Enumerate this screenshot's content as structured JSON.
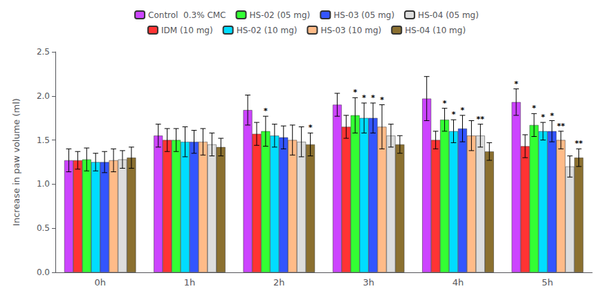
{
  "chart_data": {
    "type": "bar",
    "categories": [
      "0h",
      "1h",
      "2h",
      "3h",
      "4h",
      "5h"
    ],
    "series": [
      {
        "name": "Control  0.3% CMC",
        "color": "#CC44FF",
        "values": [
          1.27,
          1.55,
          1.84,
          1.9,
          1.97,
          1.93
        ],
        "errors": [
          0.13,
          0.13,
          0.17,
          0.13,
          0.25,
          0.15
        ]
      },
      {
        "name": "IDM (10 mg)",
        "color": "#FF3333",
        "values": [
          1.27,
          1.5,
          1.57,
          1.65,
          1.5,
          1.43
        ],
        "errors": [
          0.1,
          0.13,
          0.13,
          0.13,
          0.1,
          0.13
        ]
      },
      {
        "name": "HS-02 (05 mg)",
        "color": "#33FF33",
        "values": [
          1.28,
          1.5,
          1.6,
          1.78,
          1.73,
          1.67
        ],
        "errors": [
          0.13,
          0.13,
          0.17,
          0.2,
          0.13,
          0.13
        ]
      },
      {
        "name": "HS-02 (10 mg)",
        "color": "#00DDFF",
        "values": [
          1.25,
          1.48,
          1.55,
          1.75,
          1.6,
          1.6
        ],
        "errors": [
          0.1,
          0.17,
          0.13,
          0.17,
          0.13,
          0.1
        ]
      },
      {
        "name": "HS-03 (05 mg)",
        "color": "#3355FF",
        "values": [
          1.25,
          1.48,
          1.53,
          1.75,
          1.63,
          1.6
        ],
        "errors": [
          0.12,
          0.13,
          0.13,
          0.17,
          0.15,
          0.12
        ]
      },
      {
        "name": "HS-03 (10 mg)",
        "color": "#FFBB88",
        "values": [
          1.27,
          1.48,
          1.5,
          1.65,
          1.55,
          1.5
        ],
        "errors": [
          0.13,
          0.15,
          0.17,
          0.25,
          0.17,
          0.1
        ]
      },
      {
        "name": "HS-04 (05 mg)",
        "color": "#DDDDDD",
        "values": [
          1.28,
          1.45,
          1.48,
          1.55,
          1.55,
          1.2
        ],
        "errors": [
          0.1,
          0.13,
          0.17,
          0.13,
          0.13,
          0.12
        ]
      },
      {
        "name": "HS-04 (10 mg)",
        "color": "#8B7030",
        "values": [
          1.3,
          1.42,
          1.45,
          1.45,
          1.37,
          1.3
        ],
        "errors": [
          0.12,
          0.1,
          0.13,
          0.1,
          0.1,
          0.1
        ]
      }
    ],
    "annotations": [
      {
        "category": "2h",
        "series": "HS-02 (05 mg)",
        "text": "*"
      },
      {
        "category": "2h",
        "series": "HS-04 (10 mg)",
        "text": "*"
      },
      {
        "category": "3h",
        "series": "HS-02 (05 mg)",
        "text": "*"
      },
      {
        "category": "3h",
        "series": "HS-02 (10 mg)",
        "text": "*"
      },
      {
        "category": "3h",
        "series": "HS-03 (05 mg)",
        "text": "*"
      },
      {
        "category": "3h",
        "series": "HS-03 (10 mg)",
        "text": "*"
      },
      {
        "category": "4h",
        "series": "HS-02 (05 mg)",
        "text": "*"
      },
      {
        "category": "4h",
        "series": "HS-02 (10 mg)",
        "text": "*"
      },
      {
        "category": "4h",
        "series": "HS-03 (05 mg)",
        "text": "*"
      },
      {
        "category": "4h",
        "series": "HS-04 (05 mg)",
        "text": "**"
      },
      {
        "category": "5h",
        "series": "Control  0.3% CMC",
        "text": "*"
      },
      {
        "category": "5h",
        "series": "HS-02 (05 mg)",
        "text": "*"
      },
      {
        "category": "5h",
        "series": "HS-02 (10 mg)",
        "text": "*"
      },
      {
        "category": "5h",
        "series": "HS-03 (05 mg)",
        "text": "*"
      },
      {
        "category": "5h",
        "series": "HS-03 (10 mg)",
        "text": "**"
      },
      {
        "category": "5h",
        "series": "HS-04 (10 mg)",
        "text": "**"
      }
    ],
    "legend_entries": [
      "Control  0.3% CMC",
      "HS-02 (05 mg)",
      "HS-03 (05 mg)",
      "HS-04 (05 mg)",
      "IDM (10 mg)",
      "HS-02 (10 mg)",
      "HS-03 (10 mg)",
      "HS-04 (10 mg)"
    ],
    "ylabel": "Increase in paw volume (ml)",
    "ylim": [
      0,
      2.5
    ],
    "yticks": [
      {
        "value": 0,
        "label": "0.0"
      },
      0.5,
      {
        "value": 1,
        "label": "1.0"
      },
      1.5,
      {
        "value": 2,
        "label": "2.0"
      },
      2.5
    ],
    "legend": "top",
    "grid": false
  }
}
